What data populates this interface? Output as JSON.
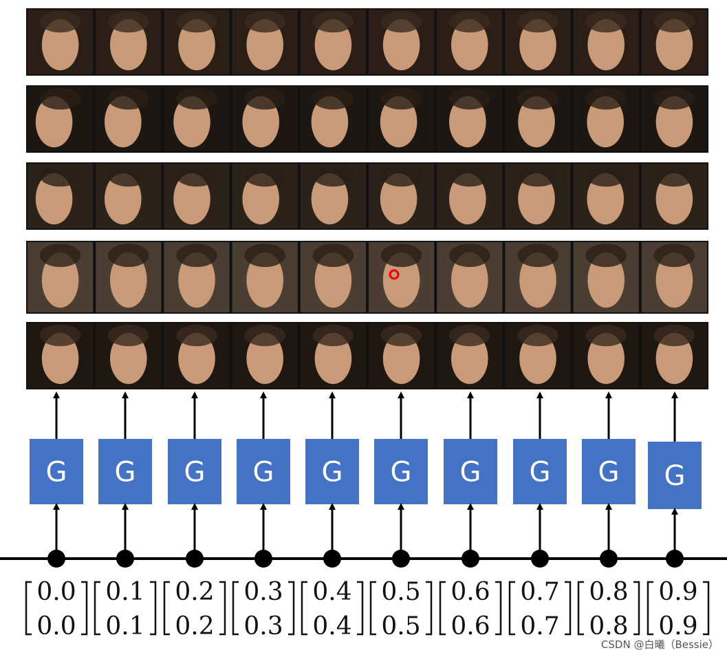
{
  "generators": [
    {
      "label": "G"
    },
    {
      "label": "G"
    },
    {
      "label": "G"
    },
    {
      "label": "G"
    },
    {
      "label": "G"
    },
    {
      "label": "G"
    },
    {
      "label": "G"
    },
    {
      "label": "G"
    },
    {
      "label": "G"
    },
    {
      "label": "G"
    }
  ],
  "vectors": [
    {
      "top": "0.0",
      "bottom": "0.0"
    },
    {
      "top": "0.1",
      "bottom": "0.1"
    },
    {
      "top": "0.2",
      "bottom": "0.2"
    },
    {
      "top": "0.3",
      "bottom": "0.3"
    },
    {
      "top": "0.4",
      "bottom": "0.4"
    },
    {
      "top": "0.5",
      "bottom": "0.5"
    },
    {
      "top": "0.6",
      "bottom": "0.6"
    },
    {
      "top": "0.7",
      "bottom": "0.7"
    },
    {
      "top": "0.8",
      "bottom": "0.8"
    },
    {
      "top": "0.9",
      "bottom": "0.9"
    }
  ],
  "watermark": "CSDN @白曦（Bessie）"
}
